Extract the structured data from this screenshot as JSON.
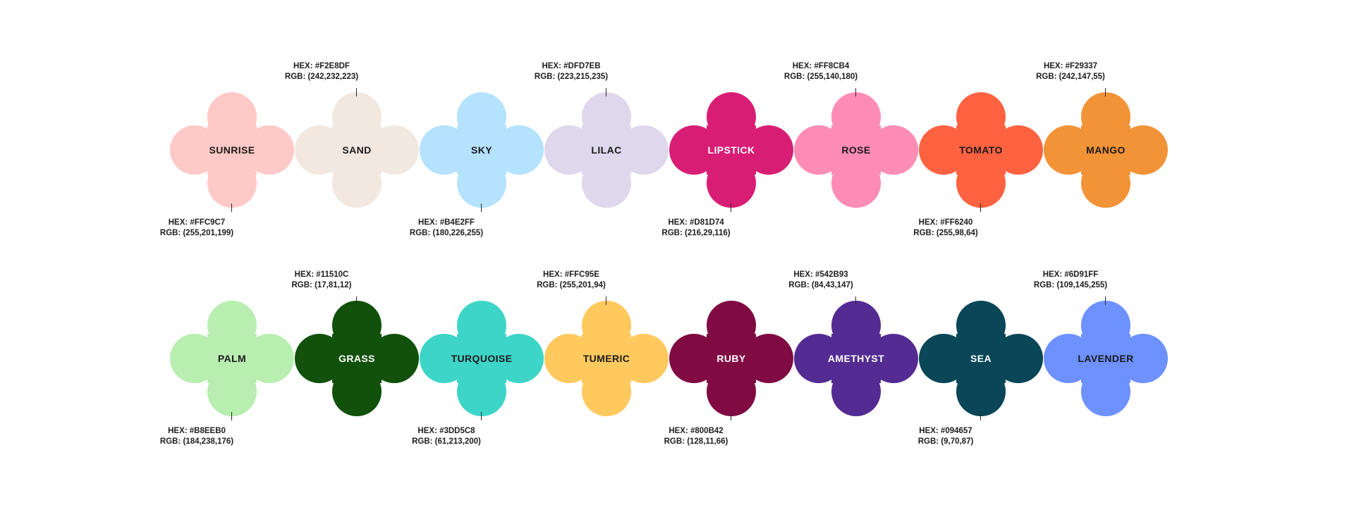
{
  "swatches": [
    {
      "name": "SUNRISE",
      "hex": "HEX: #FFC9C7",
      "rgb": "RGB: (255,201,199)",
      "color": "#FFC9C7",
      "text_color": "#1a1a1a",
      "label_pos": "below"
    },
    {
      "name": "SAND",
      "hex": "HEX: #F2E8DF",
      "rgb": "RGB: (242,232,223)",
      "color": "#F2E8DF",
      "text_color": "#1a1a1a",
      "label_pos": "above"
    },
    {
      "name": "SKY",
      "hex": "HEX: #B4E2FF",
      "rgb": "RGB: (180,226,255)",
      "color": "#B4E2FF",
      "text_color": "#1a1a1a",
      "label_pos": "below"
    },
    {
      "name": "LILAC",
      "hex": "HEX: #DFD7EB",
      "rgb": "RGB: (223,215,235)",
      "color": "#DFD7EB",
      "text_color": "#1a1a1a",
      "label_pos": "above"
    },
    {
      "name": "LIPSTICK",
      "hex": "HEX: #D81D74",
      "rgb": "RGB: (216,29,116)",
      "color": "#D81D74",
      "text_color": "#ffffff",
      "label_pos": "below"
    },
    {
      "name": "ROSE",
      "hex": "HEX: #FF8CB4",
      "rgb": "RGB: (255,140,180)",
      "color": "#FF8CB4",
      "text_color": "#1a1a1a",
      "label_pos": "above"
    },
    {
      "name": "TOMATO",
      "hex": "HEX: #FF6240",
      "rgb": "RGB: (255,98,64)",
      "color": "#FF6240",
      "text_color": "#1a1a1a",
      "label_pos": "below"
    },
    {
      "name": "MANGO",
      "hex": "HEX: #F29337",
      "rgb": "RGB: (242,147,55)",
      "color": "#F29337",
      "text_color": "#1a1a1a",
      "label_pos": "above"
    },
    {
      "name": "PALM",
      "hex": "HEX: #B8EEB0",
      "rgb": "RGB: (184,238,176)",
      "color": "#B8EEB0",
      "text_color": "#1a1a1a",
      "label_pos": "below"
    },
    {
      "name": "GRASS",
      "hex": "HEX: #11510C",
      "rgb": "RGB: (17,81,12)",
      "color": "#11510C",
      "text_color": "#ffffff",
      "label_pos": "above"
    },
    {
      "name": "TURQUOISE",
      "hex": "HEX: #3DD5C8",
      "rgb": "RGB: (61,213,200)",
      "color": "#3DD5C8",
      "text_color": "#1a1a1a",
      "label_pos": "below"
    },
    {
      "name": "TUMERIC",
      "hex": "HEX: #FFC95E",
      "rgb": "RGB: (255,201,94)",
      "color": "#FFC95E",
      "text_color": "#1a1a1a",
      "label_pos": "above"
    },
    {
      "name": "RUBY",
      "hex": "HEX: #800B42",
      "rgb": "RGB: (128,11,66)",
      "color": "#800B42",
      "text_color": "#ffffff",
      "label_pos": "below"
    },
    {
      "name": "AMETHYST",
      "hex": "HEX: #542B93",
      "rgb": "RGB: (84,43,147)",
      "color": "#542B93",
      "text_color": "#ffffff",
      "label_pos": "above"
    },
    {
      "name": "SEA",
      "hex": "HEX: #094657",
      "rgb": "RGB: (9,70,87)",
      "color": "#094657",
      "text_color": "#ffffff",
      "label_pos": "below"
    },
    {
      "name": "LAVENDER",
      "hex": "HEX: #6D91FF",
      "rgb": "RGB: (109,145,255)",
      "color": "#6D91FF",
      "text_color": "#1a1a1a",
      "label_pos": "above"
    }
  ]
}
